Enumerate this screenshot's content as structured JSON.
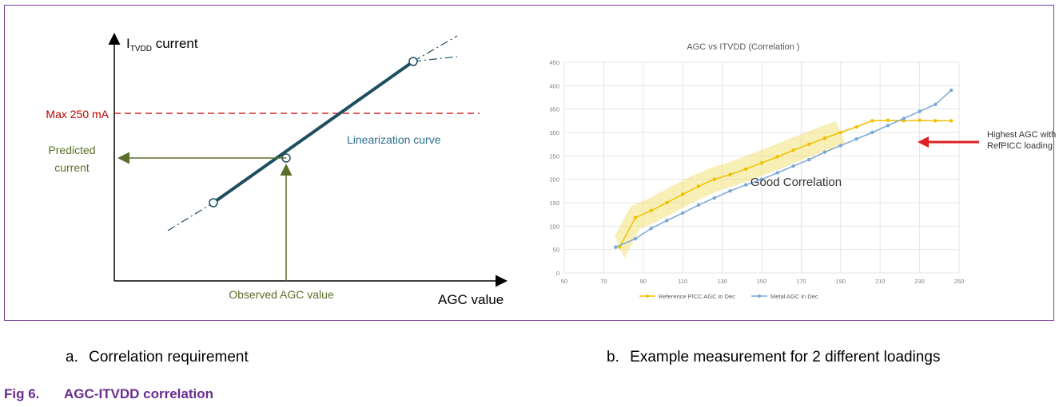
{
  "left_diagram": {
    "y_axis_label_main": "I",
    "y_axis_label_sub": "TVDD",
    "y_axis_label_rest": " current",
    "x_axis_label": "AGC value",
    "max_label": "Max 250 mA",
    "predicted_line1": "Predicted",
    "predicted_line2": "current",
    "curve_label": "Linearization curve",
    "observed_label": "Observed AGC value",
    "colors": {
      "max": "#c00000",
      "arrow": "#5a6e2a",
      "curve": "#1f4e5f",
      "curve_label": "#2e6e8e"
    }
  },
  "captions": {
    "a_marker": "a.",
    "a_text": "Correlation requirement",
    "b_marker": "b.",
    "b_text": "Example measurement for 2 different loadings"
  },
  "figure": {
    "number": "Fig 6.",
    "title": "AGC-ITVDD correlation"
  },
  "chart_data": {
    "type": "line",
    "title": "AGC vs ITVDD (Correlation )",
    "xlim": [
      50,
      250
    ],
    "ylim": [
      0,
      450
    ],
    "x_ticks": [
      "50",
      "70",
      "90",
      "110",
      "130",
      "150",
      "170",
      "190",
      "210",
      "230",
      "250"
    ],
    "y_ticks": [
      "0",
      "50",
      "100",
      "150",
      "200",
      "250",
      "300",
      "350",
      "400",
      "450"
    ],
    "grid": true,
    "legend_position": "bottom",
    "series": [
      {
        "name": "Reference PICC AGC in Dec",
        "color": "#f0c000",
        "x": [
          78,
          86,
          94,
          102,
          110,
          118,
          126,
          134,
          142,
          150,
          158,
          166,
          174,
          182,
          190,
          198,
          206,
          214,
          222,
          230,
          238,
          246
        ],
        "y": [
          55,
          118,
          133,
          150,
          168,
          185,
          200,
          210,
          222,
          235,
          248,
          262,
          275,
          288,
          300,
          312,
          325,
          326,
          325,
          326,
          325,
          325
        ]
      },
      {
        "name": "Metal AGC in Dec",
        "color": "#7aa7d6",
        "x": [
          76,
          86,
          94,
          102,
          110,
          118,
          126,
          134,
          142,
          150,
          158,
          166,
          174,
          182,
          190,
          198,
          206,
          214,
          222,
          230,
          238,
          246
        ],
        "y": [
          55,
          73,
          95,
          112,
          128,
          145,
          160,
          175,
          188,
          200,
          214,
          228,
          242,
          258,
          272,
          286,
          300,
          315,
          330,
          345,
          360,
          390
        ]
      }
    ],
    "annotations": {
      "good_correlation": "Good Correlation",
      "highest_line1": "Highest AGC with",
      "highest_line2": "RefPICC loading"
    },
    "arrow_color": "#e02020",
    "band_color": "#f2e27a"
  }
}
